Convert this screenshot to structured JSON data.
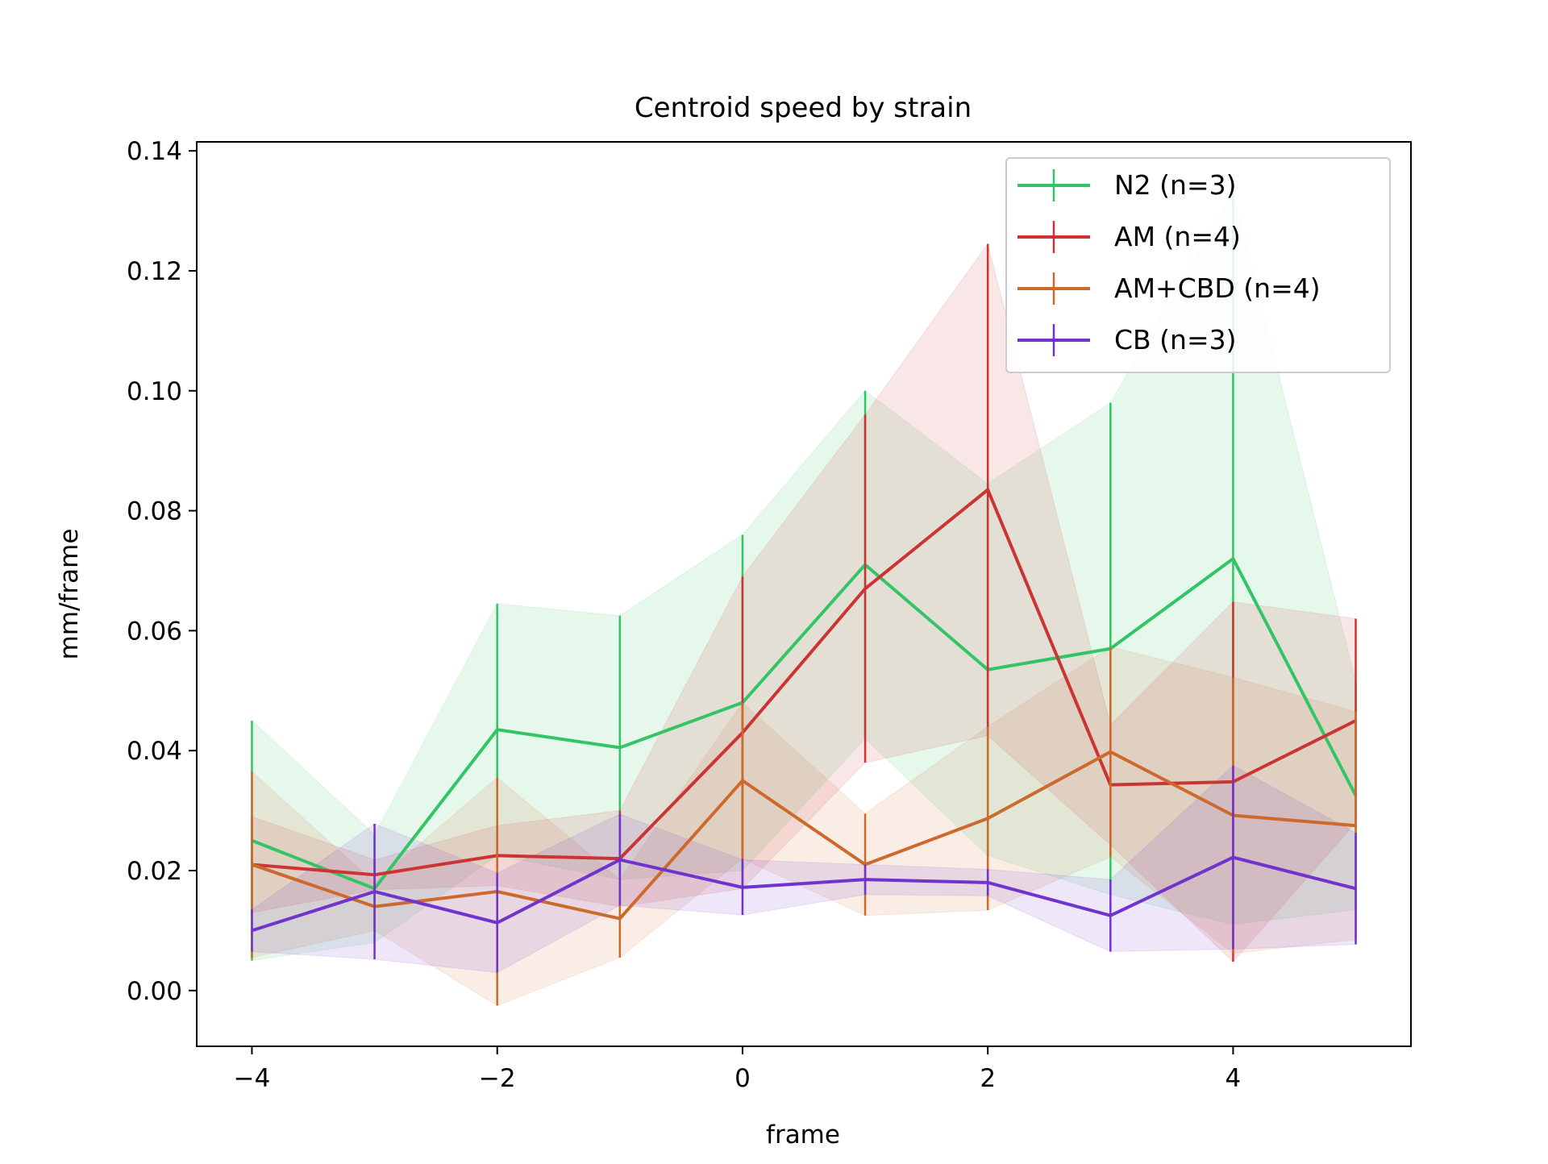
{
  "chart_data": {
    "type": "line",
    "title": "Centroid speed by strain",
    "xlabel": "frame",
    "ylabel": "mm/frame",
    "x": [
      -4,
      -3,
      -2,
      -1,
      0,
      1,
      2,
      3,
      4,
      5
    ],
    "xlim": [
      -4.45,
      5.45
    ],
    "ylim": [
      -0.0093,
      0.1415
    ],
    "xticks": [
      -4,
      -2,
      0,
      2,
      4
    ],
    "xtick_labels": [
      "−4",
      "−2",
      "0",
      "2",
      "4"
    ],
    "yticks": [
      0.0,
      0.02,
      0.04,
      0.06,
      0.08,
      0.1,
      0.12,
      0.14
    ],
    "ytick_labels": [
      "0.00",
      "0.02",
      "0.04",
      "0.06",
      "0.08",
      "0.10",
      "0.12",
      "0.14"
    ],
    "grid": false,
    "legend_position": "top-right",
    "series": [
      {
        "name": "N2 (n=3)",
        "color": "#33c466",
        "values": [
          0.025,
          0.017,
          0.0435,
          0.0405,
          0.048,
          0.071,
          0.0535,
          0.057,
          0.072,
          0.0325
        ],
        "error": [
          0.02,
          0.009,
          0.021,
          0.022,
          0.028,
          0.029,
          0.031,
          0.041,
          0.061,
          0.019
        ]
      },
      {
        "name": "AM (n=4)",
        "color": "#cc3333",
        "values": [
          0.021,
          0.0193,
          0.0225,
          0.022,
          0.043,
          0.067,
          0.0835,
          0.0343,
          0.0348,
          0.045
        ],
        "error": [
          0.008,
          0.0025,
          0.005,
          0.008,
          0.026,
          0.029,
          0.041,
          0.01,
          0.03,
          0.017
        ]
      },
      {
        "name": "AM+CBD (n=4)",
        "color": "#cc6a2e",
        "values": [
          0.021,
          0.014,
          0.0165,
          0.012,
          0.035,
          0.021,
          0.0287,
          0.0398,
          0.0292,
          0.0275
        ],
        "error": [
          0.0155,
          0.004,
          0.019,
          0.0065,
          0.013,
          0.0085,
          0.0153,
          0.0175,
          0.023,
          0.019
        ]
      },
      {
        "name": "CB (n=3)",
        "color": "#7033cc",
        "values": [
          0.01,
          0.0165,
          0.0113,
          0.0218,
          0.0172,
          0.0185,
          0.018,
          0.0125,
          0.0222,
          0.017
        ],
        "error": [
          0.0035,
          0.0113,
          0.0083,
          0.0076,
          0.0046,
          0.0025,
          0.0022,
          0.006,
          0.0153,
          0.0093
        ]
      }
    ]
  }
}
